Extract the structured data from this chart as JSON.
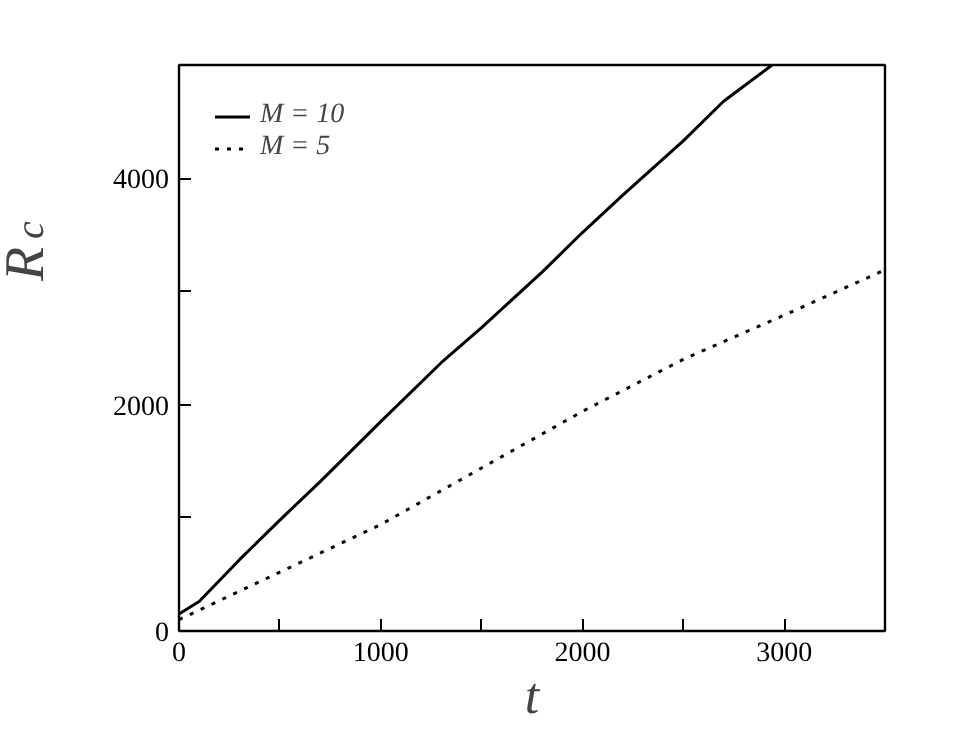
{
  "chart_data": {
    "type": "line",
    "xlabel": "t",
    "ylabel": "R$_{c}$",
    "xlim": [
      0,
      3500
    ],
    "ylim": [
      0,
      5000
    ],
    "xticks": [
      0,
      {
        "value": 500,
        "label": null
      },
      1000,
      {
        "value": 1500,
        "label": null
      },
      2000,
      {
        "value": 2500,
        "label": null
      },
      3000
    ],
    "yticks": [
      0,
      {
        "value": 1000,
        "label": null
      },
      2000,
      {
        "value": 3000,
        "label": null
      },
      4000
    ],
    "grid": false,
    "legend": "top left",
    "series": [
      {
        "name": "M = 10",
        "color": "#000000",
        "line_style": "solid",
        "x": [
          0,
          100,
          300,
          500,
          700,
          1000,
          1300,
          1500,
          1800,
          2000,
          2200,
          2500,
          2700,
          2940
        ],
        "values": [
          150,
          260,
          630,
          980,
          1320,
          1850,
          2370,
          2680,
          3170,
          3520,
          3850,
          4330,
          4680,
          5000
        ]
      },
      {
        "name": "M = 5",
        "color": "#000000",
        "line_style": "dotted",
        "x": [
          0,
          500,
          1000,
          1500,
          2000,
          2500,
          3000,
          3500
        ],
        "values": [
          100,
          520,
          940,
          1440,
          1940,
          2400,
          2790,
          3190
        ]
      }
    ]
  }
}
